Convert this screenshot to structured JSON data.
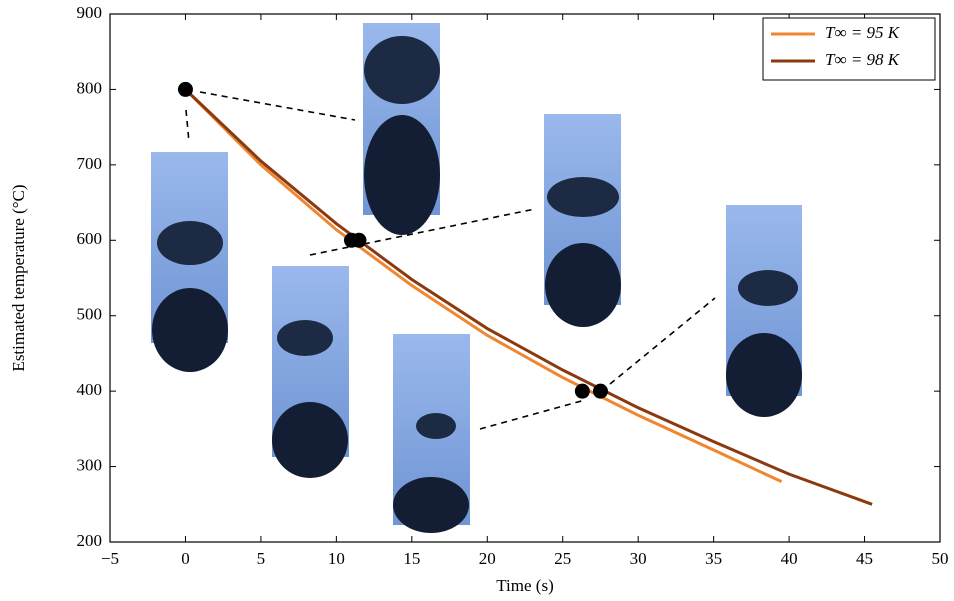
{
  "chart_data": {
    "type": "line",
    "xlabel": "Time (s)",
    "ylabel": "Estimated temperature (°C)",
    "series": [
      {
        "name": "T∞ = 95 K",
        "color": "#f0862f",
        "x": [
          0,
          5,
          10,
          15,
          20,
          25,
          30,
          35,
          39.5
        ],
        "values": [
          800,
          700,
          614,
          540,
          474,
          418,
          368,
          322,
          280
        ]
      },
      {
        "name": "T∞ = 98 K",
        "color": "#8b3a0f",
        "x": [
          0,
          5,
          10,
          15,
          20,
          25,
          30,
          35,
          40,
          45.5
        ],
        "values": [
          800,
          705,
          622,
          548,
          483,
          428,
          378,
          333,
          290,
          250
        ]
      }
    ],
    "markers": {
      "color": "#000000",
      "x": [
        0,
        11,
        11.5,
        26.3,
        27.5
      ],
      "values": [
        800,
        600,
        600,
        400,
        400
      ]
    },
    "xlim": [
      -5,
      50
    ],
    "ylim": [
      200,
      900
    ],
    "xticks": [
      {
        "value": -5,
        "label": "−5"
      },
      0,
      5,
      10,
      15,
      20,
      25,
      30,
      35,
      40,
      45,
      50
    ],
    "yticks": [
      200,
      300,
      400,
      500,
      600,
      700,
      800,
      900
    ],
    "legend": "top right",
    "grid": false
  }
}
